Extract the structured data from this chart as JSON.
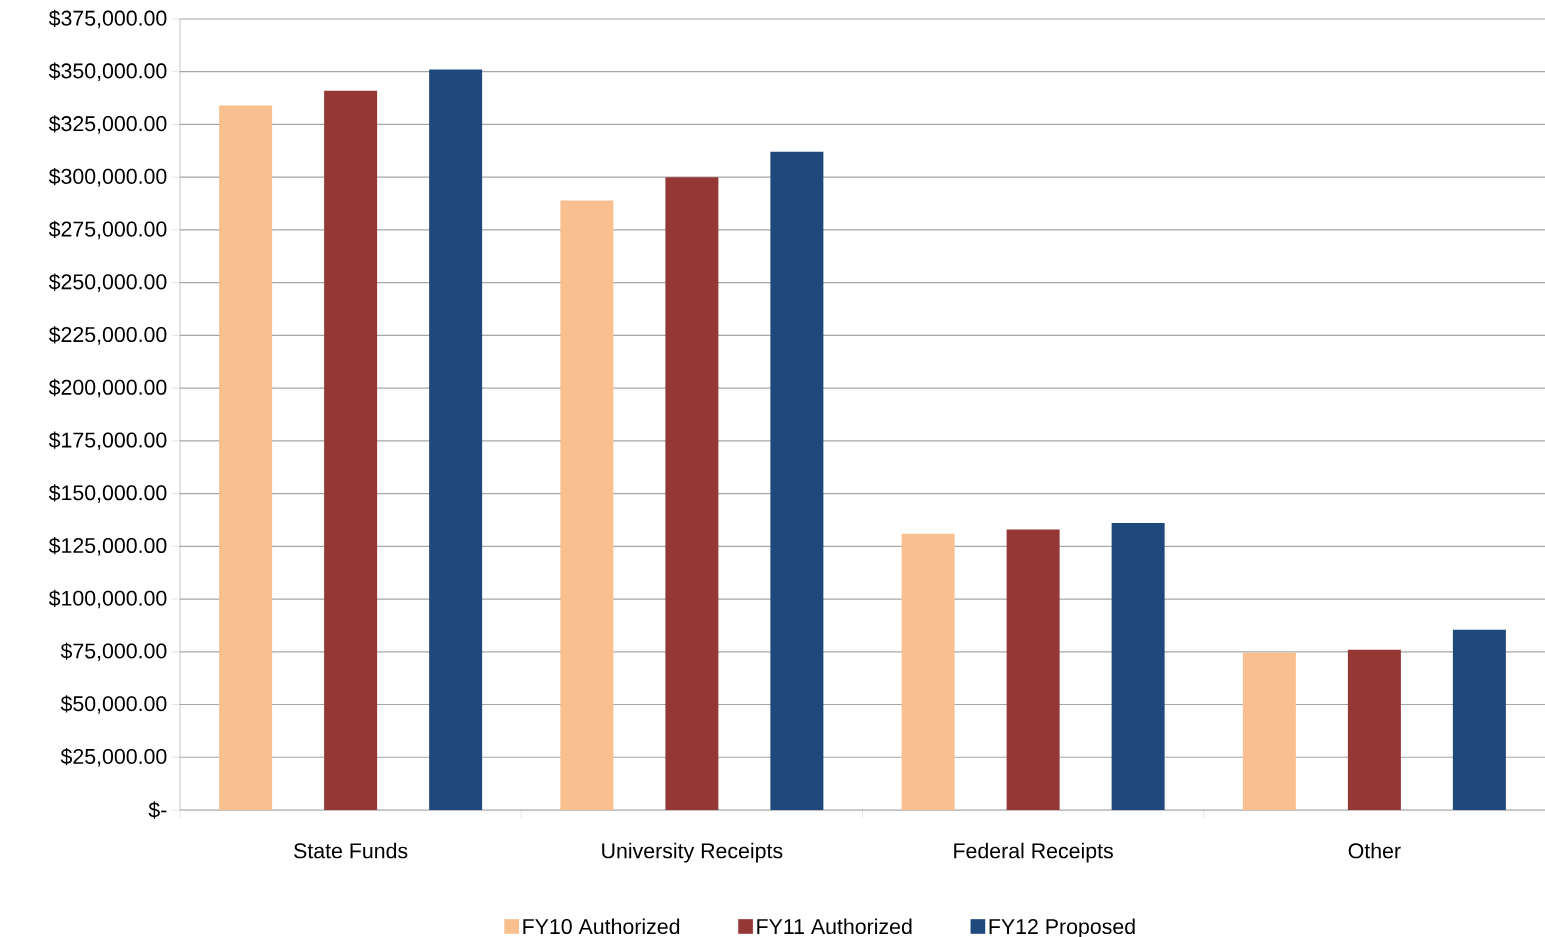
{
  "chart_data": {
    "type": "bar",
    "categories": [
      "State Funds",
      "University Receipts",
      "Federal Receipts",
      "Other"
    ],
    "series": [
      {
        "name": "FY10 Authorized",
        "color": "#f9bf8f",
        "values": [
          334000,
          289000,
          131000,
          74500
        ]
      },
      {
        "name": "FY11 Authorized",
        "color": "#953735",
        "values": [
          341000,
          300000,
          133000,
          76000
        ]
      },
      {
        "name": "FY12 Proposed",
        "color": "#1f497d",
        "values": [
          351000,
          312000,
          136000,
          85500
        ]
      }
    ],
    "ylim": [
      0,
      375000
    ],
    "yticks": [
      {
        "value": 0,
        "label": "$-"
      },
      {
        "value": 25000,
        "label": "$25,000.00"
      },
      {
        "value": 50000,
        "label": "$50,000.00"
      },
      {
        "value": 75000,
        "label": "$75,000.00"
      },
      {
        "value": 100000,
        "label": "$100,000.00"
      },
      {
        "value": 125000,
        "label": "$125,000.00"
      },
      {
        "value": 150000,
        "label": "$150,000.00"
      },
      {
        "value": 175000,
        "label": "$175,000.00"
      },
      {
        "value": 200000,
        "label": "$200,000.00"
      },
      {
        "value": 225000,
        "label": "$225,000.00"
      },
      {
        "value": 250000,
        "label": "$250,000.00"
      },
      {
        "value": 275000,
        "label": "$275,000.00"
      },
      {
        "value": 300000,
        "label": "$300,000.00"
      },
      {
        "value": 325000,
        "label": "$325,000.00"
      },
      {
        "value": 350000,
        "label": "$350,000.00"
      },
      {
        "value": 375000,
        "label": "$375,000.00"
      }
    ],
    "grid": "y",
    "legend": "bottom"
  }
}
